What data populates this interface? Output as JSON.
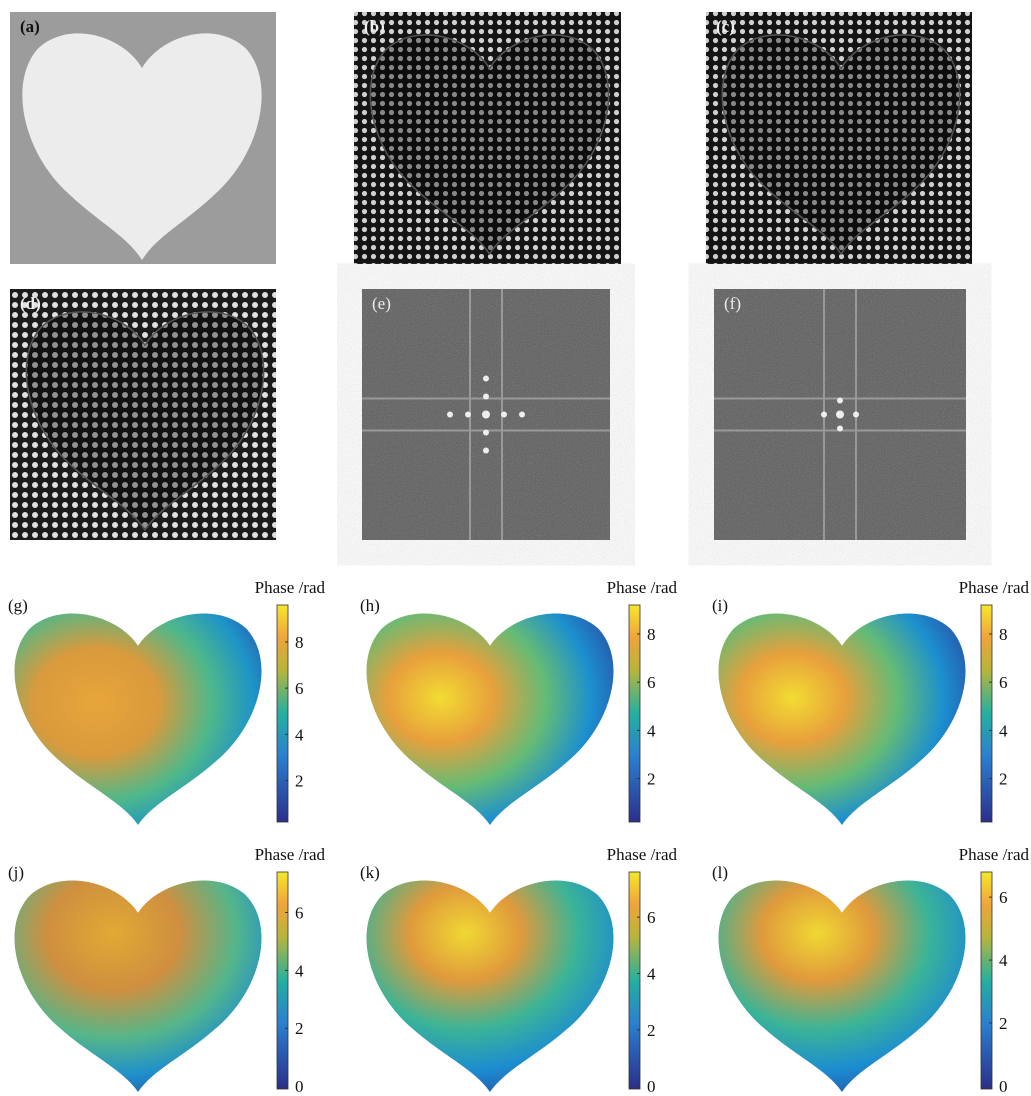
{
  "panels": [
    {
      "label": "(a)"
    },
    {
      "label": "(b)"
    },
    {
      "label": "(c)"
    },
    {
      "label": "(d)"
    },
    {
      "label": "(e)"
    },
    {
      "label": "(f)"
    }
  ],
  "phase_maps": [
    {
      "label": "(g)",
      "colorbar": {
        "title": "Phase /rad",
        "lim": [
          0.2,
          9.6
        ],
        "ticks": [
          2,
          4,
          6,
          8
        ]
      }
    },
    {
      "label": "(h)",
      "colorbar": {
        "title": "Phase /rad",
        "lim": [
          0.2,
          9.2
        ],
        "ticks": [
          2,
          4,
          6,
          8
        ]
      }
    },
    {
      "label": "(i)",
      "colorbar": {
        "title": "Phase /rad",
        "lim": [
          0.2,
          9.2
        ],
        "ticks": [
          2,
          4,
          6,
          8
        ]
      }
    },
    {
      "label": "(j)",
      "colorbar": {
        "title": "Phase /rad",
        "lim": [
          -0.1,
          7.4
        ],
        "ticks": [
          0,
          2,
          4,
          6
        ]
      }
    },
    {
      "label": "(k)",
      "colorbar": {
        "title": "Phase /rad",
        "lim": [
          -0.1,
          7.6
        ],
        "ticks": [
          0,
          2,
          4,
          6
        ]
      }
    },
    {
      "label": "(l)",
      "colorbar": {
        "title": "Phase /rad",
        "lim": [
          -0.1,
          6.8
        ],
        "ticks": [
          0,
          2,
          4,
          6
        ]
      }
    }
  ]
}
